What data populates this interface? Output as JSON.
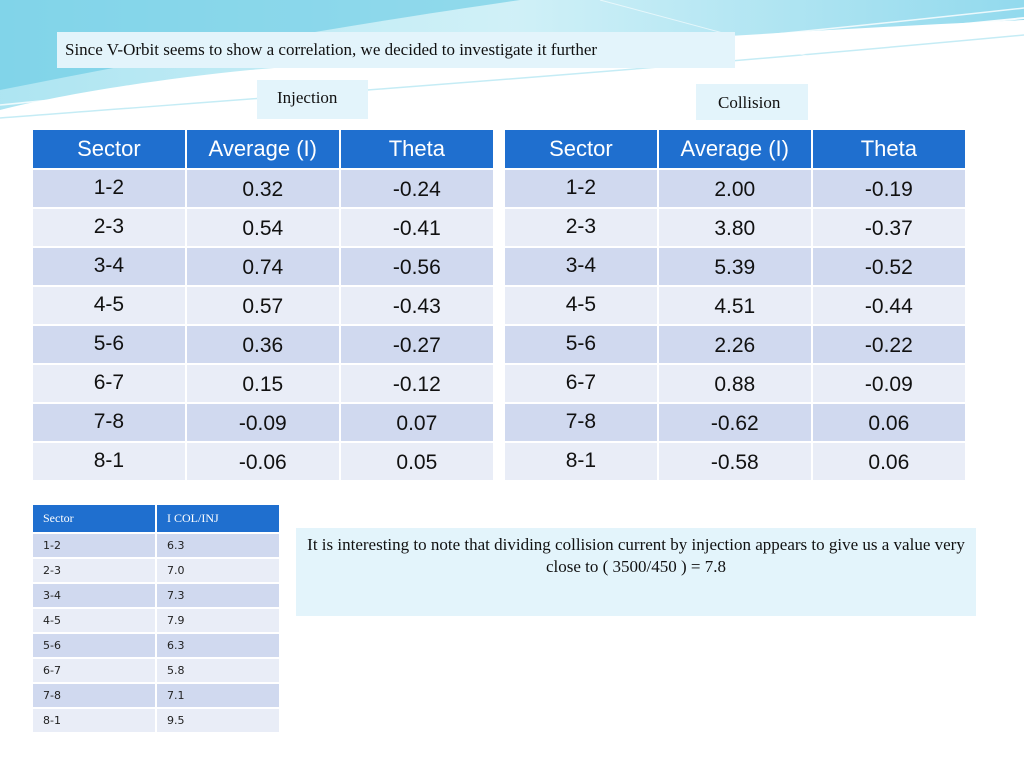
{
  "title": "Since V-Orbit seems to show a correlation, we decided to investigate it further",
  "injection": {
    "label": "Injection",
    "headers": [
      "Sector",
      "Average (I)",
      "Theta"
    ],
    "rows": [
      [
        "1-2",
        "0.32",
        "-0.24"
      ],
      [
        "2-3",
        "0.54",
        "-0.41"
      ],
      [
        "3-4",
        "0.74",
        "-0.56"
      ],
      [
        "4-5",
        "0.57",
        "-0.43"
      ],
      [
        "5-6",
        "0.36",
        "-0.27"
      ],
      [
        "6-7",
        "0.15",
        "-0.12"
      ],
      [
        "7-8",
        "-0.09",
        "0.07"
      ],
      [
        "8-1",
        "-0.06",
        "0.05"
      ]
    ]
  },
  "collision": {
    "label": "Collision",
    "headers": [
      "Sector",
      "Average (I)",
      "Theta"
    ],
    "rows": [
      [
        "1-2",
        "2.00",
        "-0.19"
      ],
      [
        "2-3",
        "3.80",
        "-0.37"
      ],
      [
        "3-4",
        "5.39",
        "-0.52"
      ],
      [
        "4-5",
        "4.51",
        "-0.44"
      ],
      [
        "5-6",
        "2.26",
        "-0.22"
      ],
      [
        "6-7",
        "0.88",
        "-0.09"
      ],
      [
        "7-8",
        "-0.62",
        "0.06"
      ],
      [
        "8-1",
        "-0.58",
        "0.06"
      ]
    ]
  },
  "ratio": {
    "headers": [
      "Sector",
      "I COL/INJ"
    ],
    "rows": [
      [
        "1-2",
        "6.3"
      ],
      [
        "2-3",
        "7.0"
      ],
      [
        "3-4",
        "7.3"
      ],
      [
        "4-5",
        "7.9"
      ],
      [
        "5-6",
        "6.3"
      ],
      [
        "6-7",
        "5.8"
      ],
      [
        "7-8",
        "7.1"
      ],
      [
        "8-1",
        "9.5"
      ]
    ]
  },
  "note": "It is interesting to note that dividing collision current by injection appears to give us a value very close to ( 3500/450 ) = 7.8",
  "colors": {
    "header_blue": "#1f6fcf",
    "row_dark": "#d0d9ef",
    "row_light": "#e9edf7",
    "box_bg": "#e3f4fb"
  }
}
